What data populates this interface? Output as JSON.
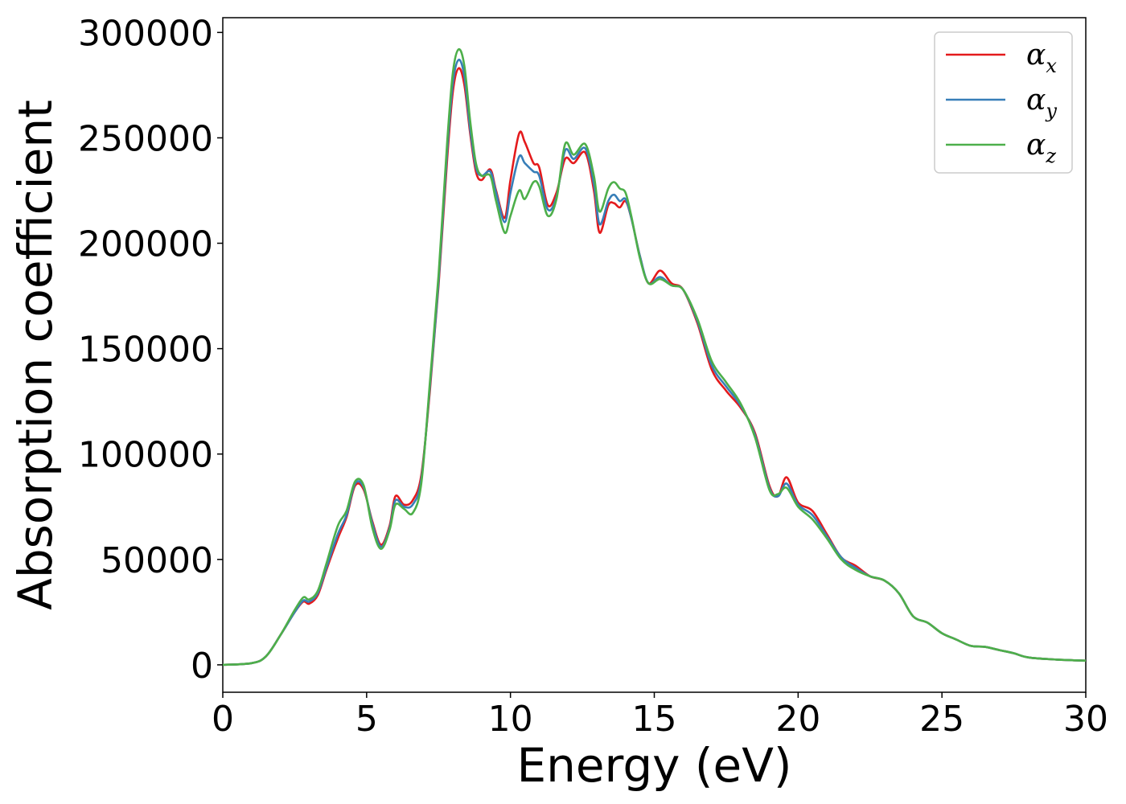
{
  "chart_data": {
    "type": "line",
    "title": "",
    "xlabel": "Energy (eV)",
    "ylabel": "Absorption coefficient",
    "xlim": [
      0,
      30
    ],
    "ylim": [
      -13000,
      307000
    ],
    "xticks": [
      0,
      5,
      10,
      15,
      20,
      25,
      30
    ],
    "yticks": [
      0,
      50000,
      100000,
      150000,
      200000,
      250000,
      300000
    ],
    "grid": false,
    "legend_position": "top-right",
    "x": [
      0,
      1,
      1.5,
      2,
      2.5,
      2.8,
      3.0,
      3.3,
      3.6,
      4.0,
      4.3,
      4.6,
      4.9,
      5.2,
      5.5,
      5.8,
      6.0,
      6.3,
      6.6,
      6.9,
      7.2,
      7.5,
      7.8,
      8.0,
      8.2,
      8.4,
      8.6,
      8.8,
      9.0,
      9.3,
      9.5,
      9.8,
      10.0,
      10.3,
      10.5,
      10.8,
      11.0,
      11.3,
      11.6,
      11.9,
      12.2,
      12.6,
      12.9,
      13.1,
      13.4,
      13.6,
      13.8,
      14.0,
      14.2,
      14.5,
      14.8,
      15.2,
      15.6,
      16.0,
      16.5,
      17.0,
      17.5,
      18.0,
      18.5,
      19.0,
      19.3,
      19.6,
      20.0,
      20.5,
      21.0,
      21.5,
      22.0,
      22.5,
      23.0,
      23.5,
      24.0,
      24.5,
      25.0,
      25.5,
      26.0,
      26.5,
      27.0,
      27.5,
      28.0,
      29.0,
      30.0
    ],
    "series": [
      {
        "name": "α",
        "sub": "x",
        "color": "#e41a1c",
        "values": [
          0,
          800,
          4000,
          14000,
          25000,
          30000,
          29000,
          33000,
          45000,
          60000,
          70000,
          85000,
          83000,
          68000,
          57000,
          66000,
          80000,
          76000,
          78000,
          90000,
          130000,
          180000,
          240000,
          272000,
          283000,
          275000,
          252000,
          234000,
          230000,
          235000,
          225000,
          212000,
          230000,
          252000,
          248000,
          238000,
          236000,
          218000,
          224000,
          240000,
          238000,
          243000,
          225000,
          205000,
          218000,
          219000,
          217000,
          220000,
          212000,
          194000,
          181000,
          187000,
          181000,
          178000,
          162000,
          140000,
          130000,
          122000,
          110000,
          85000,
          80000,
          89000,
          77000,
          73000,
          62000,
          51000,
          47000,
          42000,
          40000,
          34000,
          23000,
          20000,
          15000,
          12000,
          9000,
          8500,
          7000,
          5500,
          3500,
          2500,
          2000
        ]
      },
      {
        "name": "α",
        "sub": "y",
        "color": "#377eb8",
        "values": [
          0,
          800,
          4000,
          14000,
          25000,
          30500,
          30000,
          34000,
          46000,
          62000,
          71000,
          86000,
          84000,
          67000,
          56000,
          65000,
          78000,
          75000,
          76000,
          88000,
          132000,
          182000,
          244000,
          276000,
          287000,
          279000,
          254000,
          236000,
          232000,
          234000,
          224000,
          210000,
          224000,
          241000,
          238000,
          234000,
          232000,
          216000,
          222000,
          244000,
          240000,
          245000,
          228000,
          209000,
          220000,
          223000,
          220000,
          221000,
          212000,
          194000,
          181000,
          184000,
          180000,
          178000,
          163000,
          142000,
          132000,
          123000,
          109000,
          84000,
          80000,
          86000,
          76000,
          71000,
          61000,
          51000,
          46000,
          42000,
          40000,
          34000,
          23000,
          20000,
          15000,
          12000,
          9000,
          8500,
          7000,
          5500,
          3500,
          2500,
          2000
        ]
      },
      {
        "name": "α",
        "sub": "z",
        "color": "#4daf4a",
        "values": [
          0,
          800,
          4000,
          14000,
          26000,
          32000,
          31000,
          35000,
          48000,
          66000,
          73000,
          87000,
          85000,
          65000,
          55000,
          64000,
          76000,
          74000,
          72000,
          86000,
          134000,
          185000,
          248000,
          281000,
          292000,
          284000,
          258000,
          238000,
          232000,
          232000,
          220000,
          205000,
          213000,
          225000,
          221000,
          229000,
          227000,
          213000,
          221000,
          247000,
          242000,
          247000,
          232000,
          215000,
          226000,
          229000,
          226000,
          224000,
          213000,
          193000,
          181000,
          183000,
          180000,
          178000,
          164000,
          144000,
          134000,
          124000,
          108000,
          83000,
          81000,
          84000,
          75000,
          69000,
          60000,
          50000,
          45000,
          42000,
          40000,
          34000,
          23000,
          20000,
          15000,
          12000,
          9000,
          8500,
          7000,
          5500,
          3500,
          2500,
          2000
        ]
      }
    ]
  }
}
